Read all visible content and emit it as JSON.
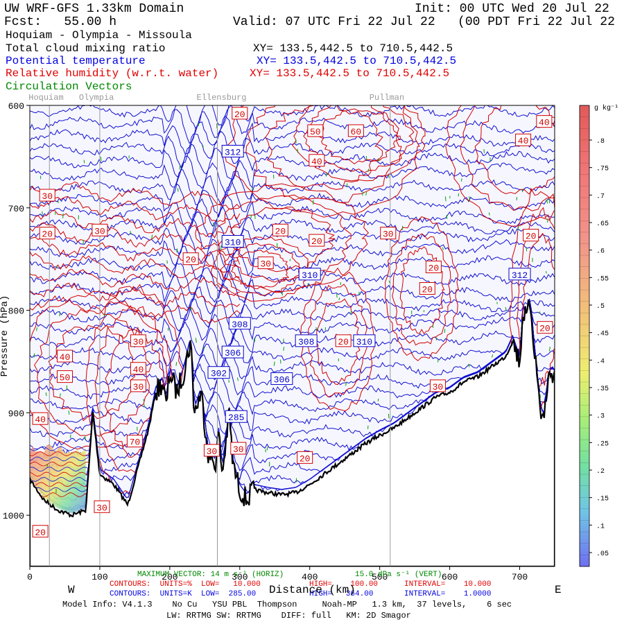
{
  "header": {
    "model": "UW WRF-GFS 1.33km Domain",
    "init": "Init: 00 UTC Wed 20 Jul 22",
    "fcst": "Fcst:   55.00 h",
    "valid": "Valid: 07 UTC Fri 22 Jul 22   (00 PDT Fri 22 Jul 22  )",
    "transect": "Hoquiam - Olympia - Missoula",
    "field1": "Total cloud mixing ratio",
    "field1_xy": "XY= 133.5,442.5 to 710.5,442.5",
    "field2": "Potential temperature",
    "field2_xy": "XY= 133.5,442.5 to 710.5,442.5",
    "field3": "Relative humidity (w.r.t. water)",
    "field3_xy": "XY= 133.5,442.5 to 710.5,442.5",
    "field4": "Circulation Vectors"
  },
  "places": [
    {
      "name": "Hoquiam",
      "x": 28
    },
    {
      "name": "Olympia",
      "x": 100
    },
    {
      "name": "Ellensburg",
      "x": 268
    },
    {
      "name": "Pullman",
      "x": 515
    }
  ],
  "footer": {
    "max_vector": "MAXIMUM VECTOR: 14 m s⁻¹ (HORIZ)",
    "max_vector_vert": "15.0 dPa s⁻¹ (VERT)",
    "xlabel": "Distance (km)",
    "west": "W",
    "east": "E",
    "rh_contours": "CONTOURS:  UNITS=%  LOW=   10.000",
    "rh_high": "HIGH=    100.00",
    "rh_interval": "INTERVAL=    10.000",
    "th_contours": "CONTOURS:  UNITS=K  LOW=  285.00",
    "th_high": "HIGH=   364.00",
    "th_interval": "INTERVAL=    1.0000",
    "model_info": "Model Info: V4.1.3    No Cu   YSU PBL  Thompson     Noah-MP   1.3 km,  37 levels,    6 sec",
    "model_info2": "LW: RRTMG SW: RRTMG    DIFF: full   KM: 2D Smagor"
  },
  "chart_data": {
    "type": "cross-section",
    "title": "Hoquiam - Olympia - Missoula",
    "xlabel": "Distance (km)",
    "ylabel": "Pressure (hPa)",
    "xlim": [
      0,
      750
    ],
    "ylim": [
      1050,
      600
    ],
    "x_ticks": [
      0,
      100,
      200,
      300,
      400,
      500,
      600,
      700
    ],
    "y_ticks": [
      600,
      700,
      800,
      900,
      1000
    ],
    "y_tick_labels": [
      "600",
      "700",
      "800",
      "900",
      "1000"
    ],
    "colorbar": {
      "units": "g kg⁻¹",
      "labels": [
        ".8",
        ".75",
        ".7",
        ".65",
        ".6",
        ".55",
        ".5",
        ".45",
        ".4",
        ".35",
        ".3",
        ".25",
        ".2",
        ".15",
        ".1",
        ".05"
      ],
      "values": [
        0.8,
        0.75,
        0.7,
        0.65,
        0.6,
        0.55,
        0.5,
        0.45,
        0.4,
        0.35,
        0.3,
        0.25,
        0.2,
        0.15,
        0.1,
        0.05
      ]
    },
    "theta_labels": [
      {
        "label": "312",
        "x": 290,
        "p": 645
      },
      {
        "label": "310",
        "x": 290,
        "p": 733
      },
      {
        "label": "310",
        "x": 400,
        "p": 765
      },
      {
        "label": "312",
        "x": 700,
        "p": 765
      },
      {
        "label": "308",
        "x": 300,
        "p": 813
      },
      {
        "label": "308",
        "x": 395,
        "p": 830
      },
      {
        "label": "310",
        "x": 478,
        "p": 830
      },
      {
        "label": "306",
        "x": 290,
        "p": 841
      },
      {
        "label": "302",
        "x": 270,
        "p": 861
      },
      {
        "label": "306",
        "x": 360,
        "p": 867
      },
      {
        "label": "285",
        "x": 295,
        "p": 904
      }
    ],
    "rh_labels": [
      {
        "label": "20",
        "x": 300,
        "p": 608
      },
      {
        "label": "50",
        "x": 408,
        "p": 625
      },
      {
        "label": "60",
        "x": 466,
        "p": 625
      },
      {
        "label": "40",
        "x": 735,
        "p": 616
      },
      {
        "label": "40",
        "x": 705,
        "p": 634
      },
      {
        "label": "40",
        "x": 410,
        "p": 654
      },
      {
        "label": "30",
        "x": 25,
        "p": 688
      },
      {
        "label": "20",
        "x": 25,
        "p": 725
      },
      {
        "label": "30",
        "x": 100,
        "p": 722
      },
      {
        "label": "20",
        "x": 358,
        "p": 722
      },
      {
        "label": "20",
        "x": 410,
        "p": 732
      },
      {
        "label": "30",
        "x": 512,
        "p": 725
      },
      {
        "label": "20",
        "x": 716,
        "p": 727
      },
      {
        "label": "20",
        "x": 230,
        "p": 750
      },
      {
        "label": "30",
        "x": 337,
        "p": 754
      },
      {
        "label": "20",
        "x": 577,
        "p": 758
      },
      {
        "label": "20",
        "x": 568,
        "p": 779
      },
      {
        "label": "20",
        "x": 736,
        "p": 817
      },
      {
        "label": "20",
        "x": 448,
        "p": 830
      },
      {
        "label": "30",
        "x": 155,
        "p": 830
      },
      {
        "label": "40",
        "x": 50,
        "p": 845
      },
      {
        "label": "50",
        "x": 50,
        "p": 865
      },
      {
        "label": "40",
        "x": 155,
        "p": 857
      },
      {
        "label": "30",
        "x": 155,
        "p": 874
      },
      {
        "label": "40",
        "x": 15,
        "p": 906
      },
      {
        "label": "70",
        "x": 150,
        "p": 928
      },
      {
        "label": "30",
        "x": 298,
        "p": 935
      },
      {
        "label": "30",
        "x": 260,
        "p": 937
      },
      {
        "label": "20",
        "x": 393,
        "p": 944
      },
      {
        "label": "30",
        "x": 583,
        "p": 874
      },
      {
        "label": "30",
        "x": 103,
        "p": 992
      },
      {
        "label": "20",
        "x": 15,
        "p": 1016
      }
    ],
    "terrain_p": [
      [
        0,
        965
      ],
      [
        20,
        985
      ],
      [
        40,
        995
      ],
      [
        60,
        1000
      ],
      [
        80,
        995
      ],
      [
        90,
        900
      ],
      [
        100,
        960
      ],
      [
        120,
        970
      ],
      [
        140,
        990
      ],
      [
        150,
        965
      ],
      [
        160,
        940
      ],
      [
        170,
        915
      ],
      [
        180,
        880
      ],
      [
        190,
        870
      ],
      [
        195,
        895
      ],
      [
        200,
        860
      ],
      [
        210,
        880
      ],
      [
        220,
        860
      ],
      [
        230,
        830
      ],
      [
        235,
        900
      ],
      [
        245,
        880
      ],
      [
        255,
        940
      ],
      [
        265,
        950
      ],
      [
        270,
        920
      ],
      [
        275,
        960
      ],
      [
        285,
        900
      ],
      [
        290,
        950
      ],
      [
        300,
        975
      ],
      [
        310,
        985
      ],
      [
        320,
        975
      ],
      [
        340,
        978
      ],
      [
        360,
        980
      ],
      [
        380,
        978
      ],
      [
        400,
        970
      ],
      [
        420,
        960
      ],
      [
        440,
        950
      ],
      [
        460,
        940
      ],
      [
        480,
        930
      ],
      [
        500,
        922
      ],
      [
        520,
        915
      ],
      [
        540,
        905
      ],
      [
        560,
        895
      ],
      [
        580,
        885
      ],
      [
        600,
        880
      ],
      [
        620,
        870
      ],
      [
        640,
        865
      ],
      [
        660,
        855
      ],
      [
        680,
        845
      ],
      [
        690,
        830
      ],
      [
        700,
        850
      ],
      [
        705,
        800
      ],
      [
        710,
        810
      ],
      [
        715,
        790
      ],
      [
        720,
        830
      ],
      [
        730,
        900
      ],
      [
        735,
        905
      ],
      [
        740,
        870
      ],
      [
        745,
        860
      ],
      [
        750,
        863
      ]
    ]
  }
}
